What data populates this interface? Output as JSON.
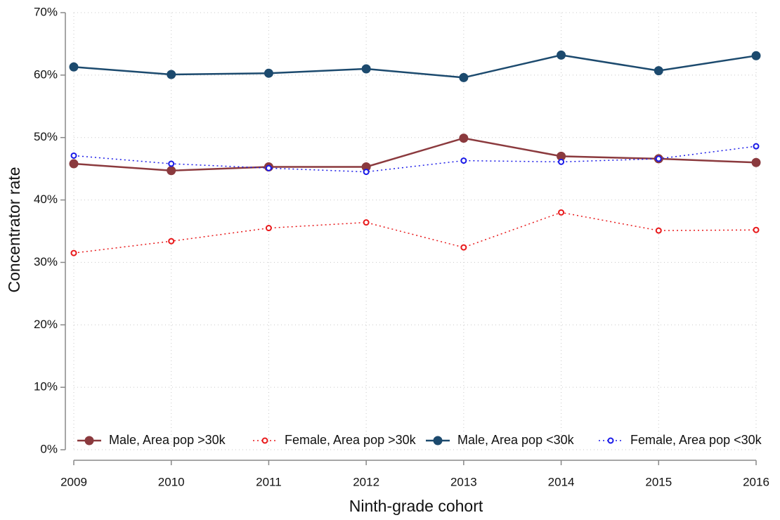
{
  "chart_data": {
    "type": "line",
    "xlabel": "Ninth-grade cohort",
    "ylabel": "Concentrator rate",
    "x": [
      2009,
      2010,
      2011,
      2012,
      2013,
      2014,
      2015,
      2016
    ],
    "xlim": [
      2009,
      2016
    ],
    "xticks": [
      2009,
      2010,
      2011,
      2012,
      2013,
      2014,
      2015,
      2016
    ],
    "ylim": [
      0,
      70
    ],
    "yticks": [
      {
        "value": 0,
        "label": "0%"
      },
      {
        "value": 10,
        "label": "10%"
      },
      {
        "value": 20,
        "label": "20%"
      },
      {
        "value": 30,
        "label": "30%"
      },
      {
        "value": 40,
        "label": "40%"
      },
      {
        "value": 50,
        "label": "50%"
      },
      {
        "value": 60,
        "label": "60%"
      },
      {
        "value": 70,
        "label": "70%"
      }
    ],
    "grid": true,
    "legend": "bottom",
    "series": [
      {
        "name": "Male, Area pop >30k",
        "color": "#8b3a3e",
        "linestyle": "solid",
        "marker": "filled",
        "values": [
          45.8,
          44.7,
          45.3,
          45.3,
          49.9,
          47.0,
          46.6,
          46.0
        ]
      },
      {
        "name": "Female, Area pop >30k",
        "color": "#e8191b",
        "linestyle": "dotted",
        "marker": "hollow",
        "values": [
          31.5,
          33.4,
          35.5,
          36.4,
          32.4,
          38.0,
          35.1,
          35.2
        ]
      },
      {
        "name": "Male, Area pop <30k",
        "color": "#1c4a6e",
        "linestyle": "solid",
        "marker": "filled",
        "values": [
          61.3,
          60.1,
          60.3,
          61.0,
          59.6,
          63.2,
          60.7,
          63.1
        ]
      },
      {
        "name": "Female, Area pop <30k",
        "color": "#1a1ae8",
        "linestyle": "dotted",
        "marker": "hollow",
        "values": [
          47.1,
          45.8,
          45.1,
          44.5,
          46.3,
          46.1,
          46.6,
          48.6
        ]
      }
    ]
  }
}
